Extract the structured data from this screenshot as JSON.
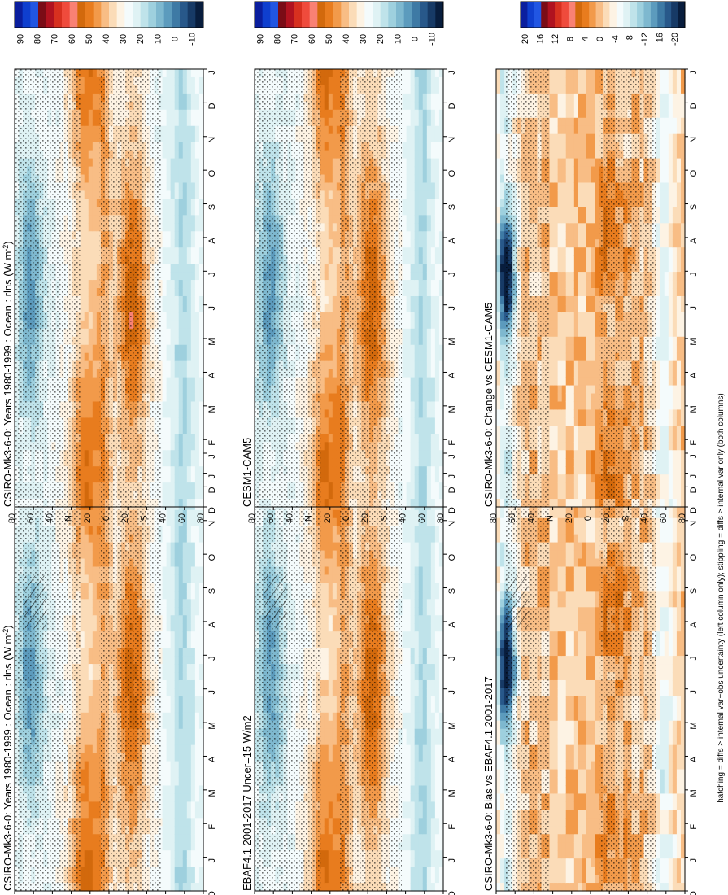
{
  "figure": {
    "footnote": "hatching = diffs > internal var+obs uncertainty (left column only); stippling = diffs > internal var only (both columns)",
    "lat_labels": [
      "80",
      "60",
      "40",
      "N",
      "20",
      "0",
      "20",
      "S",
      "40",
      "60",
      "80"
    ],
    "month_labels": [
      "D",
      "J",
      "F",
      "M",
      "A",
      "M",
      "J",
      "J",
      "A",
      "S",
      "O",
      "N",
      "D",
      "J"
    ]
  },
  "palettes": {
    "absolute": [
      "#0a1e9e",
      "#0f3fcf",
      "#2156e3",
      "#7a0c16",
      "#b0121f",
      "#d7301f",
      "#ef4b3c",
      "#f98174",
      "#d2690c",
      "#e87c1e",
      "#f29a4a",
      "#f8bd85",
      "#fbdcb8",
      "#fdf3e4",
      "#f4fbfc",
      "#dff2f4",
      "#bfe3ea",
      "#9ed0de",
      "#7eb8cf",
      "#5c9bbd",
      "#3e7aa5",
      "#28588a",
      "#173a66",
      "#081d3d"
    ],
    "difference": [
      "#0a1e9e",
      "#0f3fcf",
      "#2156e3",
      "#7a0c16",
      "#b0121f",
      "#d7301f",
      "#ef4b3c",
      "#f98174",
      "#d2690c",
      "#e87c1e",
      "#f29a4a",
      "#f8bd85",
      "#fbdcb8",
      "#fdf3e4",
      "#f4fbfc",
      "#dff2f4",
      "#bfe3ea",
      "#9ed0de",
      "#7eb8cf",
      "#5c9bbd",
      "#3e7aa5",
      "#28588a",
      "#173a66",
      "#081d3d"
    ]
  },
  "chart_data": [
    {
      "type": "heatmap",
      "panel": "top-left",
      "title": "CSIRO-Mk3-6-0: Years 1980-1999 : Ocean : rlns (W m",
      "title_sup": "-2",
      "title_end": ")",
      "colorbar_ticks": [
        "90",
        "80",
        "70",
        "60",
        "50",
        "40",
        "30",
        "20",
        "10",
        "0",
        "-10"
      ],
      "xaxis": "month (Dec to Jan, 14 points)",
      "yaxis": "latitude 90N to 90S",
      "hatching": true,
      "stippling": true
    },
    {
      "type": "heatmap",
      "panel": "top-right",
      "title": "CSIRO-Mk3-6-0: Years 1980-1999 : Ocean : rlns (W m",
      "title_sup": "-2",
      "title_end": ")",
      "colorbar_ticks": [
        "90",
        "80",
        "70",
        "60",
        "50",
        "40",
        "30",
        "20",
        "10",
        "0",
        "-10"
      ],
      "hatching": false,
      "stippling": true
    },
    {
      "type": "heatmap",
      "panel": "middle-left",
      "title": "EBAF4.1 2001-2017 Uncer=15 W/m2",
      "colorbar_ticks": [
        "90",
        "80",
        "70",
        "60",
        "50",
        "40",
        "30",
        "20",
        "10",
        "0",
        "-10"
      ],
      "hatching": true,
      "stippling": true
    },
    {
      "type": "heatmap",
      "panel": "middle-right",
      "title": "CESM1-CAM5",
      "colorbar_ticks": [
        "90",
        "80",
        "70",
        "60",
        "50",
        "40",
        "30",
        "20",
        "10",
        "0",
        "-10"
      ],
      "hatching": false,
      "stippling": true
    },
    {
      "type": "heatmap",
      "panel": "bottom-left",
      "title": "CSIRO-Mk3-6-0: Bias vs EBAF4.1 2001-2017",
      "colorbar_ticks": [
        "20",
        "16",
        "12",
        "8",
        "4",
        "0",
        "-4",
        "-8",
        "-12",
        "-16",
        "-20"
      ],
      "hatching": true,
      "stippling": true
    },
    {
      "type": "heatmap",
      "panel": "bottom-right",
      "title": "CSIRO-Mk3-6-0: Change vs CESM1-CAM5",
      "colorbar_ticks": [
        "20",
        "16",
        "12",
        "8",
        "4",
        "0",
        "-4",
        "-8",
        "-12",
        "-16",
        "-20"
      ],
      "hatching": false,
      "stippling": true
    }
  ]
}
